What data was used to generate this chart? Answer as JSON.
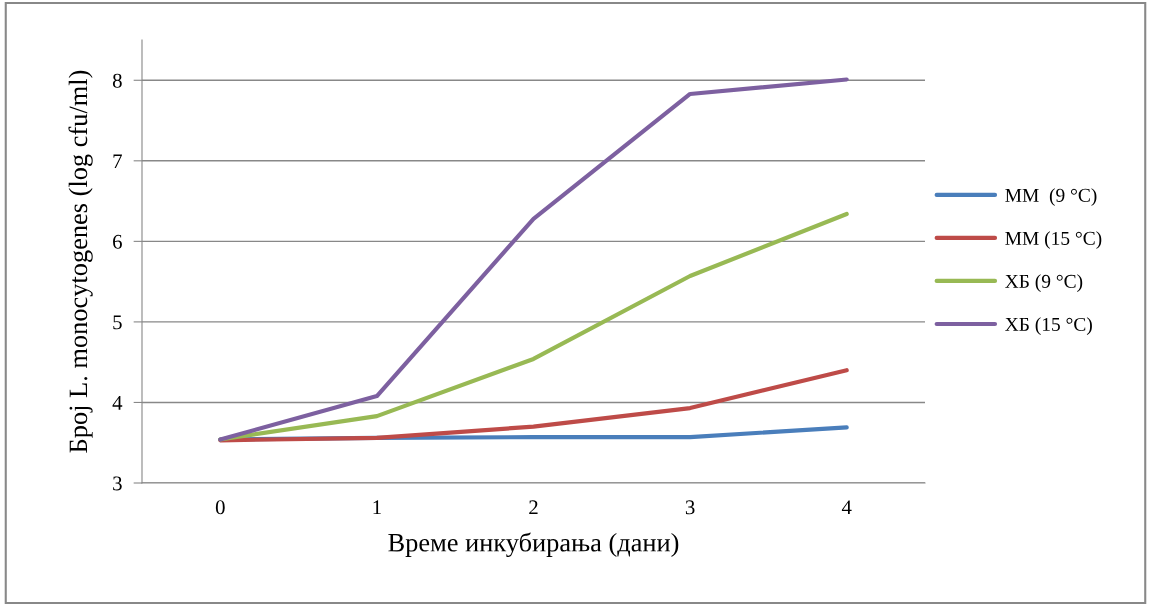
{
  "chart_data": {
    "type": "line",
    "xlabel": "Време инкубирања (дани)",
    "ylabel": "Број L. monocytogenes (log cfu/ml)",
    "categories": [
      "0",
      "1",
      "2",
      "3",
      "4"
    ],
    "series": [
      {
        "name": "ММ  (9 °C)",
        "color": "#4a7ebb",
        "values": [
          3.54,
          3.56,
          3.57,
          3.57,
          3.69
        ]
      },
      {
        "name": "ММ (15 °C)",
        "color": "#be4b48",
        "values": [
          3.53,
          3.56,
          3.7,
          3.93,
          4.4
        ]
      },
      {
        "name": "ХБ (9 °C)",
        "color": "#98b954",
        "values": [
          3.54,
          3.83,
          4.54,
          5.57,
          6.34
        ]
      },
      {
        "name": "ХБ (15 °C)",
        "color": "#7d60a0",
        "values": [
          3.54,
          4.08,
          6.28,
          7.83,
          8.01
        ]
      }
    ],
    "ylim": [
      3,
      8.5
    ],
    "yticks": [
      3,
      4,
      5,
      6,
      7,
      8
    ],
    "grid": "y",
    "legend": "right",
    "marker": "none",
    "line_style": "solid"
  }
}
